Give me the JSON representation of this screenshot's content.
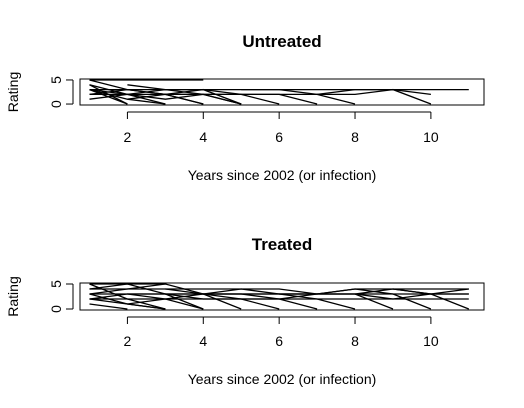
{
  "chart_data": [
    {
      "type": "line",
      "title": "Untreated",
      "xlabel": "Years since 2002 (or infection)",
      "ylabel": "Rating",
      "xlim": [
        0.75,
        11.4
      ],
      "ylim": [
        -0.2,
        5.2
      ],
      "xticks": [
        2,
        4,
        6,
        8,
        10
      ],
      "yticks": [
        0,
        5
      ],
      "series": [
        {
          "x": [
            1,
            2,
            3,
            4,
            5,
            6,
            7,
            8,
            9,
            10,
            11
          ],
          "y": [
            3,
            3,
            3,
            3,
            3,
            3,
            3,
            3,
            3,
            3,
            3
          ]
        },
        {
          "x": [
            1,
            2,
            3,
            4
          ],
          "y": [
            5,
            5,
            5,
            5
          ]
        },
        {
          "x": [
            1,
            2,
            3,
            4,
            5
          ],
          "y": [
            5,
            3,
            2,
            3,
            0
          ]
        },
        {
          "x": [
            1,
            2,
            3,
            4,
            5
          ],
          "y": [
            4,
            2,
            3,
            2,
            0
          ]
        },
        {
          "x": [
            1,
            2,
            3
          ],
          "y": [
            3,
            1,
            0
          ]
        },
        {
          "x": [
            1,
            2,
            3,
            4
          ],
          "y": [
            2,
            3,
            2,
            0
          ]
        },
        {
          "x": [
            1,
            2
          ],
          "y": [
            4,
            0
          ]
        },
        {
          "x": [
            1,
            2,
            3
          ],
          "y": [
            1,
            2,
            0
          ]
        },
        {
          "x": [
            1,
            2,
            3,
            4,
            5,
            6
          ],
          "y": [
            3,
            2,
            2,
            2,
            2,
            0
          ]
        },
        {
          "x": [
            2,
            3,
            4,
            5,
            6,
            7
          ],
          "y": [
            4,
            3,
            3,
            2,
            2,
            0
          ]
        },
        {
          "x": [
            3,
            4,
            5,
            6,
            7,
            8
          ],
          "y": [
            2,
            2,
            2,
            2,
            2,
            0
          ]
        },
        {
          "x": [
            5,
            6,
            7,
            8,
            9,
            10
          ],
          "y": [
            3,
            3,
            2,
            2,
            3,
            0
          ]
        },
        {
          "x": [
            7,
            8,
            9,
            10
          ],
          "y": [
            2,
            3,
            3,
            2
          ]
        },
        {
          "x": [
            1,
            2,
            3,
            4,
            5
          ],
          "y": [
            2,
            2,
            1,
            2,
            0
          ]
        },
        {
          "x": [
            2,
            3,
            4
          ],
          "y": [
            1,
            2,
            0
          ]
        },
        {
          "x": [
            1,
            2
          ],
          "y": [
            3,
            0
          ]
        }
      ]
    },
    {
      "type": "line",
      "title": "Treated",
      "xlabel": "Years since 2002 (or infection)",
      "ylabel": "Rating",
      "xlim": [
        0.75,
        11.4
      ],
      "ylim": [
        -0.2,
        5.2
      ],
      "xticks": [
        2,
        4,
        6,
        8,
        10
      ],
      "yticks": [
        0,
        5
      ],
      "series": [
        {
          "x": [
            1,
            2,
            3,
            4,
            5,
            6,
            7,
            8,
            9,
            10,
            11
          ],
          "y": [
            3,
            3,
            3,
            3,
            3,
            3,
            3,
            3,
            3,
            3,
            3
          ]
        },
        {
          "x": [
            1,
            2,
            3,
            4,
            5,
            6,
            7,
            8,
            9,
            10,
            11
          ],
          "y": [
            4,
            4,
            4,
            4,
            4,
            4,
            3,
            4,
            4,
            4,
            4
          ]
        },
        {
          "x": [
            1,
            2,
            3,
            4,
            5,
            6,
            7,
            8,
            9,
            10,
            11
          ],
          "y": [
            2,
            2,
            2,
            2,
            2,
            2,
            2,
            2,
            2,
            2,
            2
          ]
        },
        {
          "x": [
            1,
            2,
            3
          ],
          "y": [
            5,
            5,
            5
          ]
        },
        {
          "x": [
            1,
            2,
            3,
            4
          ],
          "y": [
            4,
            5,
            3,
            0
          ]
        },
        {
          "x": [
            1,
            2,
            3
          ],
          "y": [
            5,
            2,
            0
          ]
        },
        {
          "x": [
            1,
            2,
            3,
            4,
            5
          ],
          "y": [
            3,
            4,
            5,
            3,
            0
          ]
        },
        {
          "x": [
            1,
            2,
            3,
            4,
            5,
            6,
            7
          ],
          "y": [
            2,
            3,
            3,
            3,
            2,
            2,
            0
          ]
        },
        {
          "x": [
            2,
            3,
            4,
            5,
            6,
            7,
            8
          ],
          "y": [
            3,
            2,
            3,
            3,
            3,
            2,
            0
          ]
        },
        {
          "x": [
            3,
            4,
            5,
            6,
            7,
            8,
            9
          ],
          "y": [
            4,
            3,
            3,
            2,
            3,
            3,
            0
          ]
        },
        {
          "x": [
            4,
            5,
            6,
            7,
            8,
            9,
            10
          ],
          "y": [
            3,
            4,
            3,
            3,
            4,
            3,
            0
          ]
        },
        {
          "x": [
            6,
            7,
            8,
            9,
            10,
            11
          ],
          "y": [
            3,
            3,
            3,
            4,
            3,
            0
          ]
        },
        {
          "x": [
            8,
            9,
            10,
            11
          ],
          "y": [
            3,
            2,
            3,
            4
          ]
        },
        {
          "x": [
            1,
            2
          ],
          "y": [
            1,
            0
          ]
        },
        {
          "x": [
            1,
            2,
            3
          ],
          "y": [
            2,
            1,
            0
          ]
        },
        {
          "x": [
            2,
            3
          ],
          "y": [
            1,
            0
          ]
        },
        {
          "x": [
            1,
            2,
            3,
            4
          ],
          "y": [
            3,
            1,
            2,
            0
          ]
        },
        {
          "x": [
            3,
            4,
            5,
            6
          ],
          "y": [
            3,
            2,
            2,
            0
          ]
        },
        {
          "x": [
            9,
            10,
            11
          ],
          "y": [
            4,
            3,
            3
          ]
        }
      ]
    }
  ]
}
